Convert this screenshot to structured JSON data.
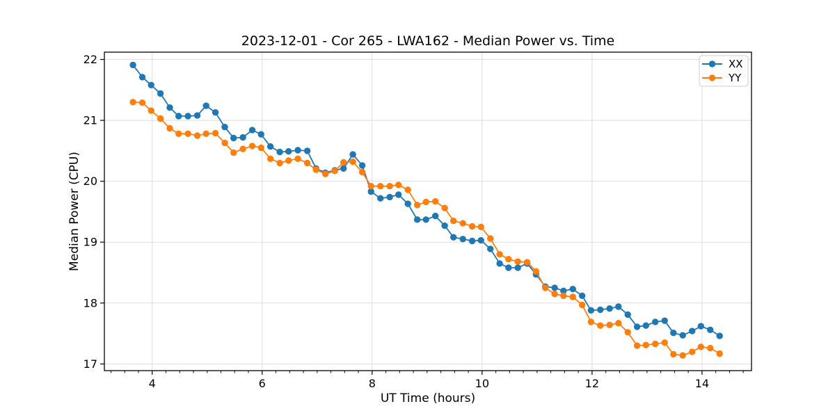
{
  "figure": {
    "background": "#ffffff",
    "spine_color": "#000000",
    "grid_color": "#dedede"
  },
  "chart_data": {
    "type": "line",
    "title": "2023-12-01 - Cor 265 - LWA162 - Median Power vs. Time",
    "xlabel": "UT Time (hours)",
    "ylabel": "Median Power (CPU)",
    "xlim": [
      3.13,
      14.9
    ],
    "ylim": [
      16.89,
      22.12
    ],
    "x_major_ticks": [
      4,
      6,
      8,
      10,
      12,
      14
    ],
    "x_minor_tick_step": 0.25,
    "y_major_ticks": [
      17,
      18,
      19,
      20,
      21,
      22
    ],
    "grid": true,
    "legend_position": "upper-right",
    "x": [
      3.65,
      3.82,
      3.98,
      4.15,
      4.32,
      4.48,
      4.65,
      4.82,
      4.98,
      5.15,
      5.32,
      5.48,
      5.65,
      5.82,
      5.98,
      6.15,
      6.32,
      6.48,
      6.65,
      6.82,
      6.98,
      7.15,
      7.32,
      7.48,
      7.65,
      7.82,
      7.98,
      8.15,
      8.32,
      8.48,
      8.65,
      8.82,
      8.98,
      9.15,
      9.32,
      9.48,
      9.65,
      9.82,
      9.98,
      10.15,
      10.32,
      10.48,
      10.65,
      10.82,
      10.98,
      11.15,
      11.32,
      11.48,
      11.65,
      11.82,
      11.98,
      12.15,
      12.32,
      12.48,
      12.65,
      12.82,
      12.98,
      13.15,
      13.32,
      13.48,
      13.65,
      13.82,
      13.98,
      14.15,
      14.32
    ],
    "series": [
      {
        "name": "XX",
        "color": "#1f77b4",
        "values": [
          21.91,
          21.71,
          21.58,
          21.44,
          21.21,
          21.07,
          21.07,
          21.08,
          21.24,
          21.13,
          20.89,
          20.71,
          20.72,
          20.84,
          20.77,
          20.57,
          20.48,
          20.49,
          20.51,
          20.5,
          20.21,
          20.14,
          20.18,
          20.21,
          20.44,
          20.26,
          19.83,
          19.72,
          19.74,
          19.78,
          19.63,
          19.37,
          19.37,
          19.43,
          19.27,
          19.08,
          19.05,
          19.02,
          19.03,
          18.89,
          18.65,
          18.58,
          18.58,
          18.65,
          18.47,
          18.27,
          18.25,
          18.2,
          18.23,
          18.12,
          17.88,
          17.89,
          17.91,
          17.94,
          17.81,
          17.61,
          17.63,
          17.69,
          17.71,
          17.51,
          17.47,
          17.54,
          17.62,
          17.56,
          17.46
        ]
      },
      {
        "name": "YY",
        "color": "#ff7f0e",
        "values": [
          21.3,
          21.29,
          21.16,
          21.03,
          20.87,
          20.78,
          20.78,
          20.75,
          20.78,
          20.79,
          20.63,
          20.47,
          20.53,
          20.58,
          20.55,
          20.37,
          20.3,
          20.34,
          20.37,
          20.3,
          20.19,
          20.12,
          20.17,
          20.31,
          20.32,
          20.15,
          19.92,
          19.92,
          19.92,
          19.94,
          19.86,
          19.61,
          19.66,
          19.67,
          19.56,
          19.35,
          19.31,
          19.26,
          19.25,
          19.06,
          18.8,
          18.72,
          18.68,
          18.67,
          18.52,
          18.25,
          18.15,
          18.12,
          18.1,
          17.97,
          17.69,
          17.63,
          17.64,
          17.67,
          17.52,
          17.3,
          17.31,
          17.33,
          17.35,
          17.16,
          17.14,
          17.2,
          17.28,
          17.26,
          17.17
        ]
      }
    ]
  }
}
